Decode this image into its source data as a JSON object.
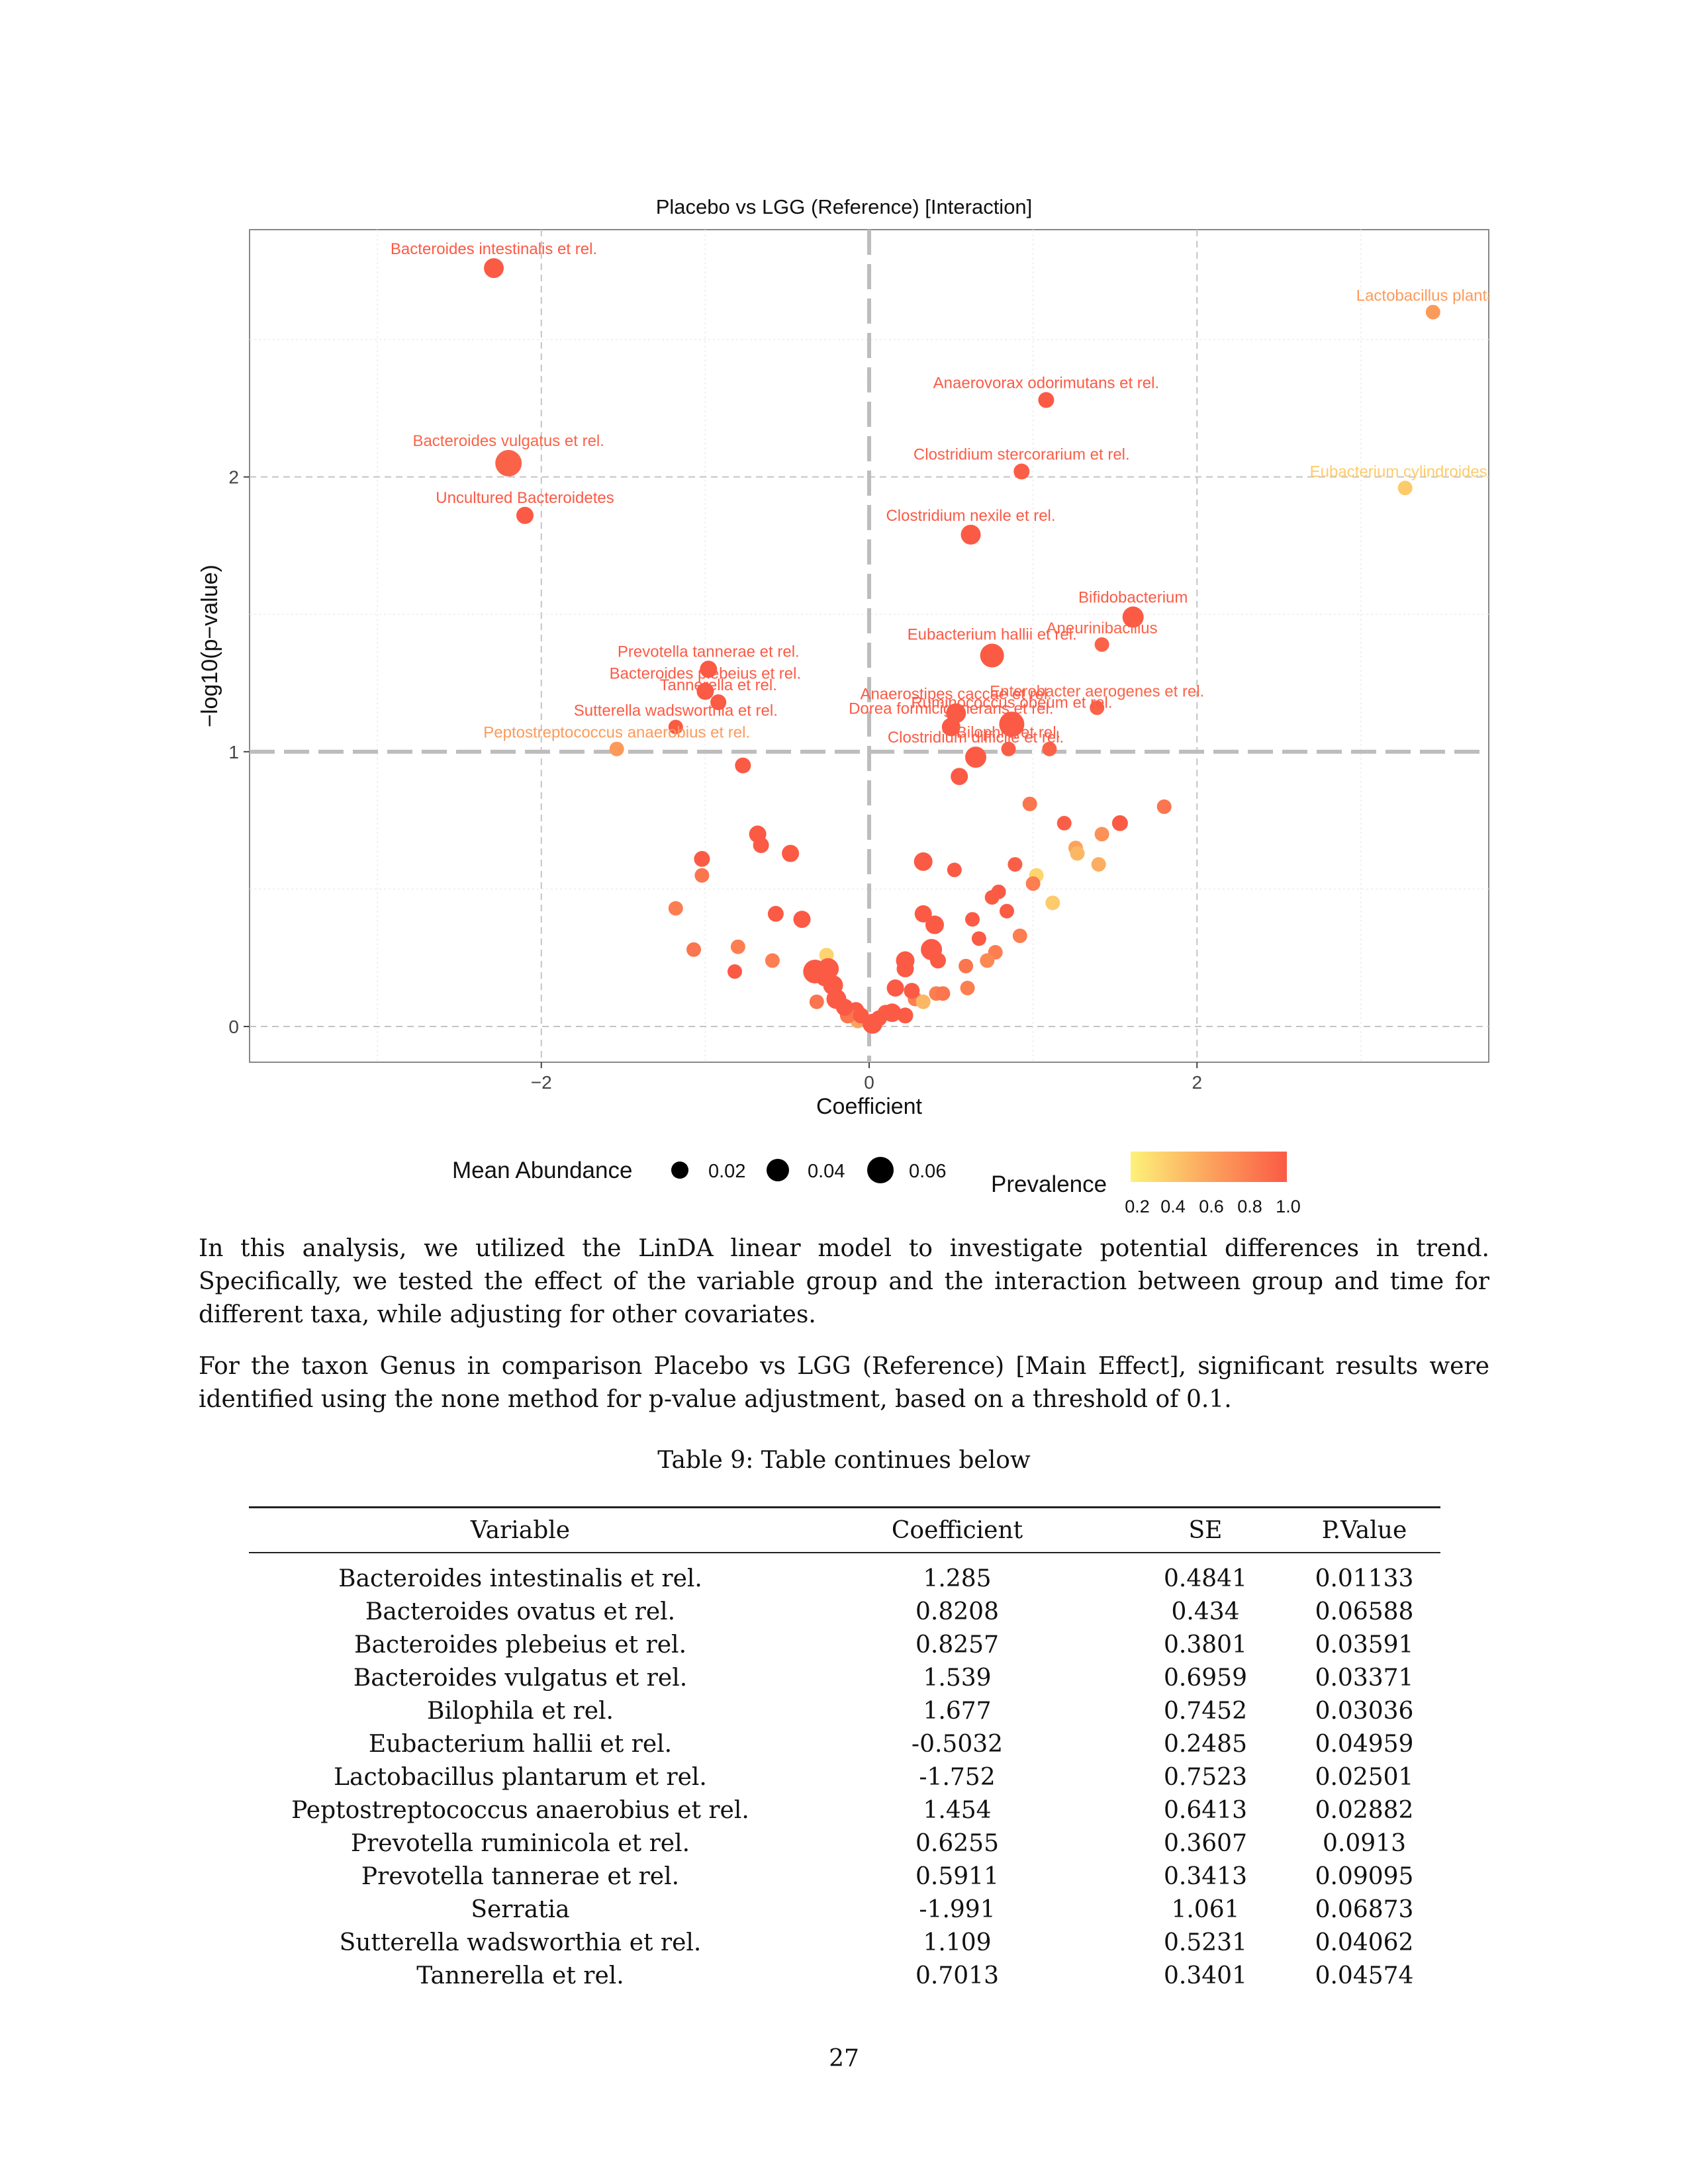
{
  "figure": {
    "colors": {
      "low_prevalence": "#fde86a",
      "high_prevalence": "#fb5a45",
      "threshold_line": "#c8c8c8",
      "panel_border": "#888888"
    },
    "size_legend_title": "Mean Abundance",
    "size_legend_values": [
      "0.02",
      "0.04",
      "0.06"
    ],
    "color_legend_title": "Prevalence",
    "color_legend_ticks": [
      "0.2",
      "0.4",
      "0.6",
      "0.8",
      "1.0"
    ]
  },
  "chart_data": {
    "type": "scatter",
    "title": "Placebo vs LGG (Reference) [Interaction]",
    "xlabel": "Coefficient",
    "ylabel": "−log10(p−value)",
    "xlim": [
      -3.78,
      3.78
    ],
    "ylim": [
      -0.13,
      2.9
    ],
    "x_ticks": [
      {
        "v": -2,
        "label": "−2"
      },
      {
        "v": 0,
        "label": "0"
      },
      {
        "v": 2,
        "label": "2"
      }
    ],
    "y_ticks": [
      {
        "v": 0,
        "label": "0"
      },
      {
        "v": 1,
        "label": "1"
      },
      {
        "v": 2,
        "label": "2"
      }
    ],
    "grid": true,
    "threshold_y": 1,
    "threshold_x": 0,
    "labeled_points": [
      {
        "label": "Bacteroides intestinalis et rel.",
        "x": -2.29,
        "y": 2.76,
        "abundance": 0.035,
        "prevalence": 1.0
      },
      {
        "label": "Lactobacillus plantaru",
        "x": 3.44,
        "y": 2.6,
        "abundance": 0.015,
        "prevalence": 0.65
      },
      {
        "label": "Anaerovorax odorimutans et rel.",
        "x": 1.08,
        "y": 2.28,
        "abundance": 0.02,
        "prevalence": 1.0
      },
      {
        "label": "Bacteroides vulgatus et rel.",
        "x": -2.2,
        "y": 2.05,
        "abundance": 0.06,
        "prevalence": 0.95
      },
      {
        "label": "Clostridium stercorarium et rel.",
        "x": 0.93,
        "y": 2.02,
        "abundance": 0.02,
        "prevalence": 0.98
      },
      {
        "label": "Eubacterium cylindroides e",
        "x": 3.27,
        "y": 1.96,
        "abundance": 0.015,
        "prevalence": 0.4
      },
      {
        "label": "Uncultured Bacteroidetes",
        "x": -2.1,
        "y": 1.86,
        "abundance": 0.025,
        "prevalence": 1.0
      },
      {
        "label": "Clostridium nexile et rel.",
        "x": 0.62,
        "y": 1.79,
        "abundance": 0.035,
        "prevalence": 1.0
      },
      {
        "label": "Bifidobacterium",
        "x": 1.61,
        "y": 1.49,
        "abundance": 0.04,
        "prevalence": 1.0
      },
      {
        "label": "Aneurinibacillus",
        "x": 1.42,
        "y": 1.39,
        "abundance": 0.015,
        "prevalence": 0.95
      },
      {
        "label": "Eubacterium hallii et rel.",
        "x": 0.75,
        "y": 1.35,
        "abundance": 0.05,
        "prevalence": 1.0
      },
      {
        "label": "Prevotella tannerae et rel.",
        "x": -0.98,
        "y": 1.3,
        "abundance": 0.025,
        "prevalence": 1.0
      },
      {
        "label": "Bacteroides plebeius et rel.",
        "x": -1.0,
        "y": 1.22,
        "abundance": 0.025,
        "prevalence": 1.0
      },
      {
        "label": "Tannerella et rel.",
        "x": -0.92,
        "y": 1.18,
        "abundance": 0.02,
        "prevalence": 1.0
      },
      {
        "label": "Enterobacter aerogenes et rel.",
        "x": 1.39,
        "y": 1.16,
        "abundance": 0.015,
        "prevalence": 0.95
      },
      {
        "label": "Anaerostipes caccae et rel.",
        "x": 0.53,
        "y": 1.14,
        "abundance": 0.035,
        "prevalence": 1.0
      },
      {
        "label": "Dorea formicigenerans et rel.",
        "x": 0.5,
        "y": 1.09,
        "abundance": 0.03,
        "prevalence": 1.0
      },
      {
        "label": "Ruminococcus obeum et rel.",
        "x": 0.87,
        "y": 1.1,
        "abundance": 0.055,
        "prevalence": 1.0
      },
      {
        "label": "Sutterella wadsworthia et rel.",
        "x": -1.18,
        "y": 1.09,
        "abundance": 0.015,
        "prevalence": 1.0
      },
      {
        "label": "Clostridium difficile et rel.",
        "x": 0.65,
        "y": 0.98,
        "abundance": 0.04,
        "prevalence": 1.0
      },
      {
        "label": "Bilophila et rel.",
        "x": 0.85,
        "y": 1.01,
        "abundance": 0.015,
        "prevalence": 0.98
      },
      {
        "label": "Peptostreptococcus anaerobius et rel.",
        "x": -1.54,
        "y": 1.01,
        "abundance": 0.015,
        "prevalence": 0.65
      }
    ],
    "unlabeled_points": [
      {
        "x": 1.1,
        "y": 1.01,
        "abundance": 0.015,
        "prevalence": 0.95
      },
      {
        "x": -0.77,
        "y": 0.95,
        "abundance": 0.02,
        "prevalence": 1.0
      },
      {
        "x": 0.55,
        "y": 0.91,
        "abundance": 0.025,
        "prevalence": 1.0
      },
      {
        "x": 0.98,
        "y": 0.81,
        "abundance": 0.015,
        "prevalence": 0.85
      },
      {
        "x": 1.8,
        "y": 0.8,
        "abundance": 0.015,
        "prevalence": 0.85
      },
      {
        "x": 1.53,
        "y": 0.74,
        "abundance": 0.02,
        "prevalence": 1.0
      },
      {
        "x": 1.19,
        "y": 0.74,
        "abundance": 0.015,
        "prevalence": 0.98
      },
      {
        "x": 1.42,
        "y": 0.7,
        "abundance": 0.015,
        "prevalence": 0.7
      },
      {
        "x": -0.68,
        "y": 0.7,
        "abundance": 0.025,
        "prevalence": 1.0
      },
      {
        "x": -0.66,
        "y": 0.66,
        "abundance": 0.02,
        "prevalence": 1.0
      },
      {
        "x": 1.26,
        "y": 0.65,
        "abundance": 0.015,
        "prevalence": 0.6
      },
      {
        "x": 1.27,
        "y": 0.63,
        "abundance": 0.015,
        "prevalence": 0.5
      },
      {
        "x": -0.48,
        "y": 0.63,
        "abundance": 0.025,
        "prevalence": 1.0
      },
      {
        "x": -1.02,
        "y": 0.61,
        "abundance": 0.02,
        "prevalence": 1.0
      },
      {
        "x": 0.33,
        "y": 0.6,
        "abundance": 0.03,
        "prevalence": 1.0
      },
      {
        "x": 0.89,
        "y": 0.59,
        "abundance": 0.015,
        "prevalence": 0.98
      },
      {
        "x": 1.4,
        "y": 0.59,
        "abundance": 0.015,
        "prevalence": 0.55
      },
      {
        "x": 0.52,
        "y": 0.57,
        "abundance": 0.015,
        "prevalence": 1.0
      },
      {
        "x": 1.02,
        "y": 0.55,
        "abundance": 0.015,
        "prevalence": 0.35
      },
      {
        "x": -1.02,
        "y": 0.55,
        "abundance": 0.015,
        "prevalence": 0.85
      },
      {
        "x": 1.0,
        "y": 0.52,
        "abundance": 0.015,
        "prevalence": 0.8
      },
      {
        "x": 0.79,
        "y": 0.49,
        "abundance": 0.015,
        "prevalence": 1.0
      },
      {
        "x": 0.75,
        "y": 0.47,
        "abundance": 0.015,
        "prevalence": 1.0
      },
      {
        "x": 1.12,
        "y": 0.45,
        "abundance": 0.015,
        "prevalence": 0.4
      },
      {
        "x": -1.18,
        "y": 0.43,
        "abundance": 0.015,
        "prevalence": 0.8
      },
      {
        "x": 0.84,
        "y": 0.42,
        "abundance": 0.015,
        "prevalence": 1.0
      },
      {
        "x": -0.57,
        "y": 0.41,
        "abundance": 0.02,
        "prevalence": 1.0
      },
      {
        "x": 0.33,
        "y": 0.41,
        "abundance": 0.025,
        "prevalence": 1.0
      },
      {
        "x": -0.41,
        "y": 0.39,
        "abundance": 0.025,
        "prevalence": 1.0
      },
      {
        "x": 0.63,
        "y": 0.39,
        "abundance": 0.015,
        "prevalence": 1.0
      },
      {
        "x": 0.4,
        "y": 0.37,
        "abundance": 0.03,
        "prevalence": 1.0
      },
      {
        "x": 0.92,
        "y": 0.33,
        "abundance": 0.015,
        "prevalence": 0.8
      },
      {
        "x": 0.67,
        "y": 0.32,
        "abundance": 0.015,
        "prevalence": 1.0
      },
      {
        "x": -0.8,
        "y": 0.29,
        "abundance": 0.015,
        "prevalence": 0.8
      },
      {
        "x": -1.07,
        "y": 0.28,
        "abundance": 0.015,
        "prevalence": 0.85
      },
      {
        "x": 0.38,
        "y": 0.28,
        "abundance": 0.04,
        "prevalence": 1.0
      },
      {
        "x": 0.77,
        "y": 0.27,
        "abundance": 0.015,
        "prevalence": 0.8
      },
      {
        "x": -0.26,
        "y": 0.26,
        "abundance": 0.015,
        "prevalence": 0.35
      },
      {
        "x": 0.42,
        "y": 0.24,
        "abundance": 0.02,
        "prevalence": 1.0
      },
      {
        "x": 0.72,
        "y": 0.24,
        "abundance": 0.015,
        "prevalence": 0.75
      },
      {
        "x": -0.59,
        "y": 0.24,
        "abundance": 0.015,
        "prevalence": 0.8
      },
      {
        "x": 0.22,
        "y": 0.24,
        "abundance": 0.03,
        "prevalence": 1.0
      },
      {
        "x": 0.59,
        "y": 0.22,
        "abundance": 0.015,
        "prevalence": 0.85
      },
      {
        "x": -0.25,
        "y": 0.21,
        "abundance": 0.04,
        "prevalence": 1.0
      },
      {
        "x": -0.82,
        "y": 0.2,
        "abundance": 0.015,
        "prevalence": 1.0
      },
      {
        "x": -0.33,
        "y": 0.2,
        "abundance": 0.05,
        "prevalence": 1.0
      },
      {
        "x": 0.22,
        "y": 0.21,
        "abundance": 0.025,
        "prevalence": 1.0
      },
      {
        "x": -0.27,
        "y": 0.18,
        "abundance": 0.03,
        "prevalence": 1.0
      },
      {
        "x": -0.22,
        "y": 0.15,
        "abundance": 0.035,
        "prevalence": 1.0
      },
      {
        "x": 0.16,
        "y": 0.14,
        "abundance": 0.025,
        "prevalence": 1.0
      },
      {
        "x": 0.6,
        "y": 0.14,
        "abundance": 0.015,
        "prevalence": 0.8
      },
      {
        "x": 0.26,
        "y": 0.13,
        "abundance": 0.02,
        "prevalence": 1.0
      },
      {
        "x": 0.41,
        "y": 0.12,
        "abundance": 0.015,
        "prevalence": 0.8
      },
      {
        "x": 0.45,
        "y": 0.12,
        "abundance": 0.015,
        "prevalence": 0.85
      },
      {
        "x": 0.28,
        "y": 0.1,
        "abundance": 0.015,
        "prevalence": 0.8
      },
      {
        "x": -0.2,
        "y": 0.1,
        "abundance": 0.035,
        "prevalence": 1.0
      },
      {
        "x": -0.32,
        "y": 0.09,
        "abundance": 0.015,
        "prevalence": 0.85
      },
      {
        "x": 0.33,
        "y": 0.09,
        "abundance": 0.015,
        "prevalence": 0.5
      },
      {
        "x": -0.15,
        "y": 0.07,
        "abundance": 0.025,
        "prevalence": 1.0
      },
      {
        "x": -0.08,
        "y": 0.06,
        "abundance": 0.02,
        "prevalence": 1.0
      },
      {
        "x": 0.1,
        "y": 0.05,
        "abundance": 0.02,
        "prevalence": 0.98
      },
      {
        "x": 0.14,
        "y": 0.05,
        "abundance": 0.03,
        "prevalence": 1.0
      },
      {
        "x": -0.13,
        "y": 0.04,
        "abundance": 0.02,
        "prevalence": 0.85
      },
      {
        "x": -0.05,
        "y": 0.04,
        "abundance": 0.02,
        "prevalence": 1.0
      },
      {
        "x": 0.22,
        "y": 0.04,
        "abundance": 0.02,
        "prevalence": 1.0
      },
      {
        "x": -0.07,
        "y": 0.02,
        "abundance": 0.015,
        "prevalence": 0.6
      },
      {
        "x": 0.06,
        "y": 0.03,
        "abundance": 0.02,
        "prevalence": 1.0
      },
      {
        "x": 0.02,
        "y": 0.01,
        "abundance": 0.035,
        "prevalence": 1.0
      }
    ]
  },
  "paragraphs": [
    "In this analysis, we utilized the LinDA linear model to investigate potential differences in trend. Specifically, we tested the effect of the variable group and the interaction between group and time for different taxa, while adjusting for other covariates.",
    "For the taxon Genus in comparison Placebo vs LGG (Reference) [Main Effect], significant results were identified using the none method for p-value adjustment, based on a threshold of 0.1."
  ],
  "table": {
    "caption": "Table 9: Table continues below",
    "headers": [
      "Variable",
      "Coefficient",
      "SE",
      "P.Value"
    ],
    "rows": [
      [
        "Bacteroides intestinalis et rel.",
        "1.285",
        "0.4841",
        "0.01133"
      ],
      [
        "Bacteroides ovatus et rel.",
        "0.8208",
        "0.434",
        "0.06588"
      ],
      [
        "Bacteroides plebeius et rel.",
        "0.8257",
        "0.3801",
        "0.03591"
      ],
      [
        "Bacteroides vulgatus et rel.",
        "1.539",
        "0.6959",
        "0.03371"
      ],
      [
        "Bilophila et rel.",
        "1.677",
        "0.7452",
        "0.03036"
      ],
      [
        "Eubacterium hallii et rel.",
        "-0.5032",
        "0.2485",
        "0.04959"
      ],
      [
        "Lactobacillus plantarum et rel.",
        "-1.752",
        "0.7523",
        "0.02501"
      ],
      [
        "Peptostreptococcus anaerobius et rel.",
        "1.454",
        "0.6413",
        "0.02882"
      ],
      [
        "Prevotella ruminicola et rel.",
        "0.6255",
        "0.3607",
        "0.0913"
      ],
      [
        "Prevotella tannerae et rel.",
        "0.5911",
        "0.3413",
        "0.09095"
      ],
      [
        "Serratia",
        "-1.991",
        "1.061",
        "0.06873"
      ],
      [
        "Sutterella wadsworthia et rel.",
        "1.109",
        "0.5231",
        "0.04062"
      ],
      [
        "Tannerella et rel.",
        "0.7013",
        "0.3401",
        "0.04574"
      ]
    ]
  },
  "page_number": "27"
}
